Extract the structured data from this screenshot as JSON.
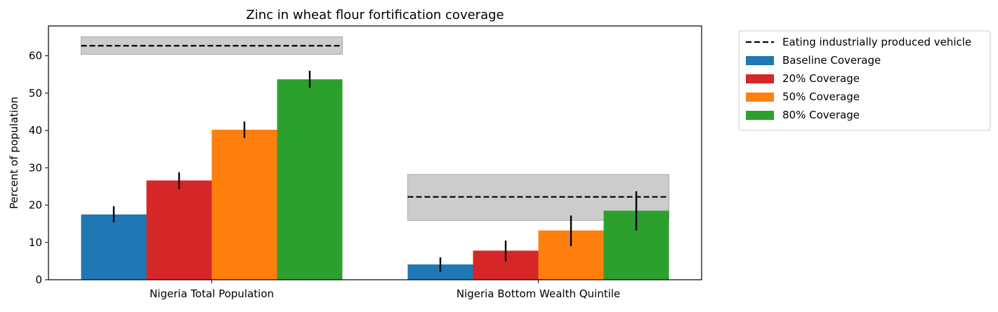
{
  "chart_data": {
    "type": "bar",
    "title": "Zinc in wheat flour fortification coverage",
    "xlabel": "",
    "ylabel": "Percent of population",
    "ylim": [
      0,
      68
    ],
    "yticks": [
      0,
      10,
      20,
      30,
      40,
      50,
      60
    ],
    "categories": [
      "Nigeria Total Population",
      "Nigeria Bottom Wealth Quintile"
    ],
    "grid": false,
    "legend_position": "outside-right-top",
    "series": [
      {
        "name": "Baseline Coverage",
        "color": "#1f77b4",
        "values": [
          17.5,
          4.1
        ],
        "error_low": [
          15.4,
          2.1
        ],
        "error_high": [
          19.7,
          6.0
        ]
      },
      {
        "name": "20% Coverage",
        "color": "#d62728",
        "values": [
          26.6,
          7.8
        ],
        "error_low": [
          24.3,
          4.9
        ],
        "error_high": [
          28.8,
          10.5
        ]
      },
      {
        "name": "50% Coverage",
        "color": "#ff7f0e",
        "values": [
          40.2,
          13.2
        ],
        "error_low": [
          38.0,
          9.0
        ],
        "error_high": [
          42.4,
          17.2
        ]
      },
      {
        "name": "80% Coverage",
        "color": "#2ca02c",
        "values": [
          53.7,
          18.5
        ],
        "error_low": [
          51.4,
          13.2
        ],
        "error_high": [
          56.0,
          23.7
        ]
      }
    ],
    "reference": {
      "name": "Eating industrially produced vehicle",
      "style": "dashed",
      "color": "#000000",
      "band_color": "#cccccc",
      "values": [
        62.7,
        22.2
      ],
      "band_low": [
        60.4,
        15.9
      ],
      "band_high": [
        65.1,
        28.2
      ]
    }
  }
}
